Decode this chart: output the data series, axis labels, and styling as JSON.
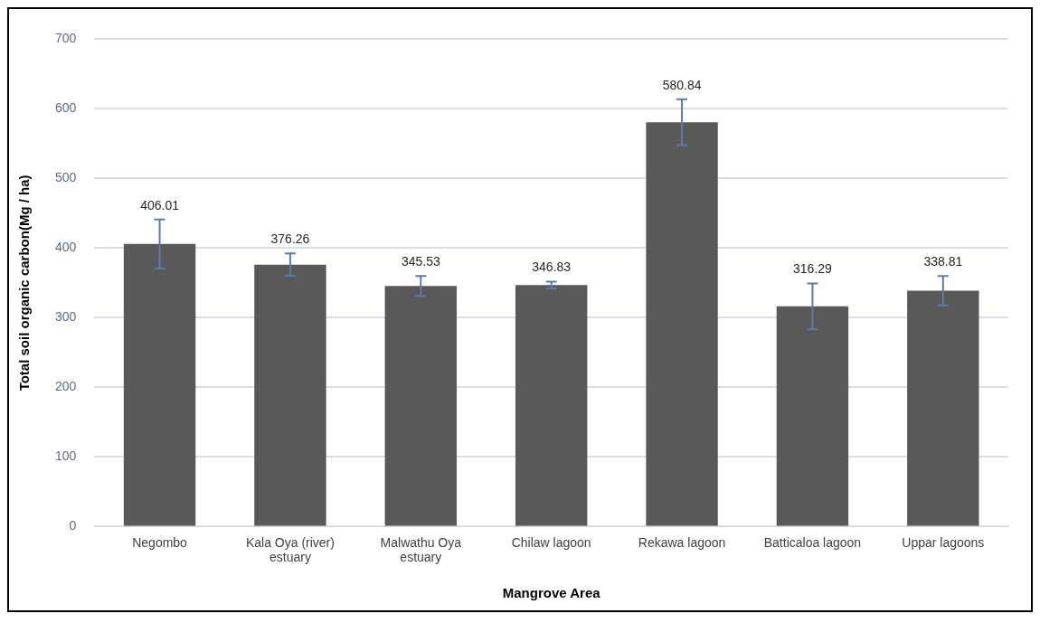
{
  "chart_data": {
    "type": "bar",
    "xlabel": "Mangrove Area",
    "ylabel": "Total soil organic carbon(Mg / ha)",
    "categories": [
      "Negombo",
      "Kala Oya (river) estuary",
      "Malwathu Oya estuary",
      "Chilaw lagoon",
      "Rekawa lagoon",
      "Batticaloa lagoon",
      "Uppar lagoons"
    ],
    "values": [
      406.01,
      376.26,
      345.53,
      346.83,
      580.84,
      316.29,
      338.81
    ],
    "errors": [
      35,
      16,
      14.5,
      5,
      33,
      33,
      21
    ],
    "color": "#595959",
    "ylim": [
      0,
      700
    ],
    "yticks": [
      0,
      100,
      200,
      300,
      400,
      500,
      600,
      700
    ],
    "grid": "y",
    "legend": false,
    "data_labels": true
  }
}
